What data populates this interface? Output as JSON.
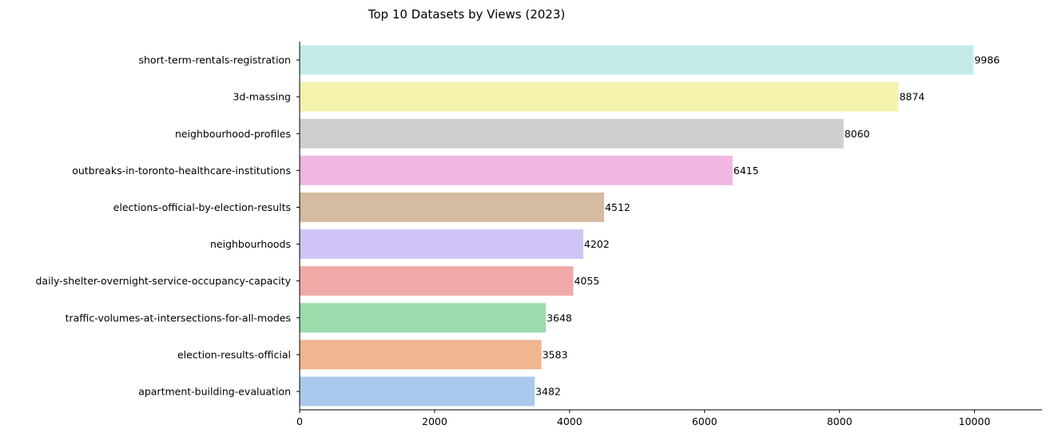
{
  "chart_data": {
    "type": "bar",
    "orientation": "horizontal",
    "title": "Top 10 Datasets by Views (2023)",
    "xlabel": "",
    "ylabel": "",
    "xlim": [
      0,
      11000
    ],
    "x_ticks": [
      0,
      2000,
      4000,
      6000,
      8000,
      10000
    ],
    "grid": false,
    "categories": [
      "short-term-rentals-registration",
      "3d-massing",
      "neighbourhood-profiles",
      "outbreaks-in-toronto-healthcare-institutions",
      "elections-official-by-election-results",
      "neighbourhoods",
      "daily-shelter-overnight-service-occupancy-capacity",
      "traffic-volumes-at-intersections-for-all-modes",
      "election-results-official",
      "apartment-building-evaluation"
    ],
    "values": [
      9986,
      8874,
      8060,
      6415,
      4512,
      4202,
      4055,
      3648,
      3583,
      3482
    ],
    "bar_colors": [
      "#c3ece8",
      "#f4f3ae",
      "#cfcfcf",
      "#f0b6e0",
      "#d4bba1",
      "#d0c4f6",
      "#f0aaa8",
      "#9cdbab",
      "#efb690",
      "#abc9ed"
    ]
  }
}
